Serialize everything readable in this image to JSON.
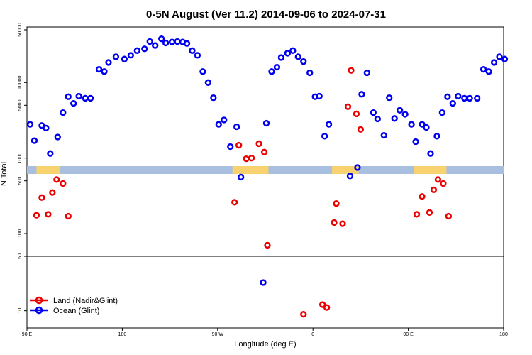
{
  "chart_data": {
    "type": "scatter",
    "title": "0-5N August (Ver 11.2)   2014-09-06 to 2024-07-31",
    "xlabel": "Longitude (deg E)",
    "ylabel": "N Total",
    "x_ticks": [
      "90 E",
      "180",
      "90 W",
      "0",
      "90 E",
      "180"
    ],
    "x_tick_values": [
      90,
      180,
      270,
      360,
      450,
      540
    ],
    "xlim": [
      90,
      540
    ],
    "y_scale": "log (broken axis)",
    "y_ticks_upper": [
      "50000",
      "10000",
      "5000",
      "1000",
      "500",
      "100",
      "50"
    ],
    "y_tick_values_upper": [
      50000,
      10000,
      5000,
      1000,
      500,
      100,
      50
    ],
    "y_ticks_lower": [
      "50",
      "10"
    ],
    "y_tick_values_lower": [
      50,
      10
    ],
    "ylim_upper": [
      50,
      50000
    ],
    "ylim_lower": [
      6,
      50
    ],
    "legend": {
      "position": "bottom-left"
    },
    "series": [
      {
        "name": "Land (Nadir&Glint)",
        "color": "#ee0000",
        "points": [
          [
            99,
            175
          ],
          [
            104,
            300
          ],
          [
            110,
            180
          ],
          [
            114,
            350
          ],
          [
            118,
            520
          ],
          [
            124,
            460
          ],
          [
            129,
            170
          ],
          [
            286,
            260
          ],
          [
            290,
            1480
          ],
          [
            297,
            980
          ],
          [
            302,
            1000
          ],
          [
            309,
            1550
          ],
          [
            314,
            1200
          ],
          [
            317,
            70
          ],
          [
            351,
            9
          ],
          [
            369,
            12
          ],
          [
            373,
            11
          ],
          [
            380,
            140
          ],
          [
            382,
            250
          ],
          [
            388,
            135
          ],
          [
            393,
            4800
          ],
          [
            396,
            14500
          ],
          [
            401,
            3850
          ],
          [
            405,
            2400
          ],
          [
            458,
            180
          ],
          [
            463,
            310
          ],
          [
            470,
            190
          ],
          [
            474,
            380
          ],
          [
            478,
            520
          ],
          [
            483,
            460
          ],
          [
            488,
            170
          ]
        ]
      },
      {
        "name": "Ocean (Glint)",
        "color": "#0000ee",
        "points": [
          [
            93,
            2800
          ],
          [
            97,
            1700
          ],
          [
            104,
            2700
          ],
          [
            108,
            2500
          ],
          [
            112,
            1150
          ],
          [
            119,
            1900
          ],
          [
            124,
            4000
          ],
          [
            129,
            6500
          ],
          [
            134,
            5300
          ],
          [
            139,
            6600
          ],
          [
            145,
            6200
          ],
          [
            150,
            6200
          ],
          [
            158,
            15000
          ],
          [
            163,
            14000
          ],
          [
            167,
            18500
          ],
          [
            174,
            22000
          ],
          [
            182,
            20500
          ],
          [
            188,
            23000
          ],
          [
            194,
            26500
          ],
          [
            201,
            28000
          ],
          [
            206,
            35000
          ],
          [
            211,
            31000
          ],
          [
            217,
            38000
          ],
          [
            221,
            33500
          ],
          [
            227,
            34500
          ],
          [
            232,
            35000
          ],
          [
            237,
            34500
          ],
          [
            241,
            33000
          ],
          [
            246,
            26500
          ],
          [
            251,
            23000
          ],
          [
            256,
            14000
          ],
          [
            261,
            10000
          ],
          [
            266,
            6300
          ],
          [
            271,
            2800
          ],
          [
            276,
            3200
          ],
          [
            282,
            1420
          ],
          [
            288,
            2600
          ],
          [
            292,
            560
          ],
          [
            313,
            23
          ],
          [
            316,
            2900
          ],
          [
            321,
            14000
          ],
          [
            326,
            16000
          ],
          [
            330,
            21500
          ],
          [
            336,
            24500
          ],
          [
            341,
            26500
          ],
          [
            346,
            22000
          ],
          [
            351,
            19000
          ],
          [
            357,
            13500
          ],
          [
            362,
            6500
          ],
          [
            366,
            6600
          ],
          [
            371,
            1950
          ],
          [
            375,
            2800
          ],
          [
            395,
            580
          ],
          [
            402,
            750
          ],
          [
            406,
            7000
          ],
          [
            411,
            13500
          ],
          [
            417,
            4000
          ],
          [
            421,
            3300
          ],
          [
            427,
            2000
          ],
          [
            432,
            6300
          ],
          [
            437,
            3350
          ],
          [
            442,
            4300
          ],
          [
            447,
            3800
          ],
          [
            453,
            2800
          ],
          [
            457,
            1650
          ],
          [
            463,
            2800
          ],
          [
            467,
            2550
          ],
          [
            471,
            1150
          ],
          [
            477,
            1950
          ],
          [
            482,
            4000
          ],
          [
            487,
            6500
          ],
          [
            492,
            5300
          ],
          [
            497,
            6600
          ],
          [
            503,
            6200
          ],
          [
            508,
            6200
          ],
          [
            515,
            6200
          ],
          [
            521,
            15000
          ],
          [
            526,
            14000
          ],
          [
            531,
            18500
          ],
          [
            536,
            22000
          ],
          [
            541,
            20500
          ]
        ]
      }
    ]
  }
}
